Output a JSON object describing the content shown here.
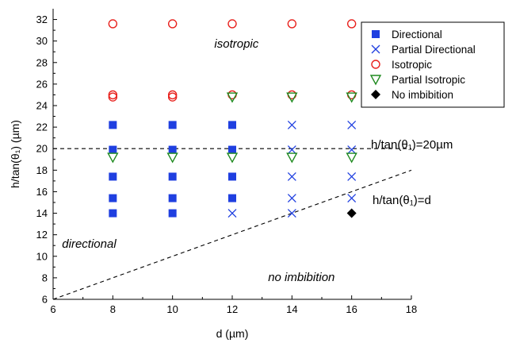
{
  "chart_data": {
    "type": "scatter",
    "xlabel": "d (µm)",
    "ylabel": "h/tan(θ₁) (µm)",
    "xlim": [
      6,
      18
    ],
    "ylim": [
      6,
      33
    ],
    "xticks": [
      6,
      8,
      10,
      12,
      14,
      16,
      18
    ],
    "yticks": [
      6,
      8,
      10,
      12,
      14,
      16,
      18,
      20,
      22,
      24,
      26,
      28,
      30,
      32
    ],
    "grid": false,
    "legend_position": "top-right",
    "colors": {
      "directional": "#1f3fe0",
      "partial_directional": "#1f3fe0",
      "isotropic": "#e8201c",
      "partial_isotropic": "#1f8a1f",
      "no_imbibition": "#000000"
    },
    "series": [
      {
        "name": "Directional",
        "marker": "square",
        "points": [
          [
            8,
            14
          ],
          [
            8,
            15.4
          ],
          [
            8,
            17.4
          ],
          [
            8,
            19.9
          ],
          [
            8,
            22.2
          ],
          [
            10,
            14
          ],
          [
            10,
            15.4
          ],
          [
            10,
            17.4
          ],
          [
            10,
            19.9
          ],
          [
            10,
            22.2
          ],
          [
            12,
            15.4
          ],
          [
            12,
            17.4
          ],
          [
            12,
            19.9
          ],
          [
            12,
            22.2
          ]
        ]
      },
      {
        "name": "Partial Directional",
        "marker": "x",
        "points": [
          [
            12,
            14
          ],
          [
            14,
            14
          ],
          [
            14,
            15.4
          ],
          [
            14,
            17.4
          ],
          [
            14,
            19.9
          ],
          [
            14,
            22.2
          ],
          [
            16,
            15.4
          ],
          [
            16,
            17.4
          ],
          [
            16,
            19.9
          ],
          [
            16,
            22.2
          ]
        ]
      },
      {
        "name": "Isotropic",
        "marker": "circle",
        "points": [
          [
            8,
            24.8
          ],
          [
            8,
            25
          ],
          [
            8,
            31.6
          ],
          [
            10,
            24.8
          ],
          [
            10,
            25
          ],
          [
            10,
            31.6
          ],
          [
            12,
            25
          ],
          [
            12,
            31.6
          ],
          [
            14,
            25
          ],
          [
            14,
            31.6
          ],
          [
            16,
            25
          ],
          [
            16,
            31.6
          ]
        ]
      },
      {
        "name": "Partial Isotropic",
        "marker": "triangle-down",
        "points": [
          [
            8,
            19.2
          ],
          [
            10,
            19.2
          ],
          [
            12,
            19.2
          ],
          [
            12,
            24.8
          ],
          [
            14,
            19.2
          ],
          [
            14,
            24.8
          ],
          [
            16,
            19.2
          ],
          [
            16,
            24.8
          ]
        ]
      },
      {
        "name": "No imbibition",
        "marker": "diamond",
        "points": [
          [
            16,
            14
          ]
        ]
      }
    ],
    "reference_lines": [
      {
        "label": "h/tan(θ₁)=20µm",
        "from": [
          6,
          20
        ],
        "to": [
          18,
          20
        ],
        "style": "dashed"
      },
      {
        "label": "h/tan(θ₁)=d",
        "from": [
          6,
          6
        ],
        "to": [
          18,
          18
        ],
        "style": "dashed"
      }
    ],
    "annotations": [
      {
        "text": "isotropic",
        "x": 11.4,
        "y": 29.4
      },
      {
        "text": "directional",
        "x": 6.3,
        "y": 10.8
      },
      {
        "text": "no imbibition",
        "x": 13.2,
        "y": 7.7
      }
    ]
  }
}
